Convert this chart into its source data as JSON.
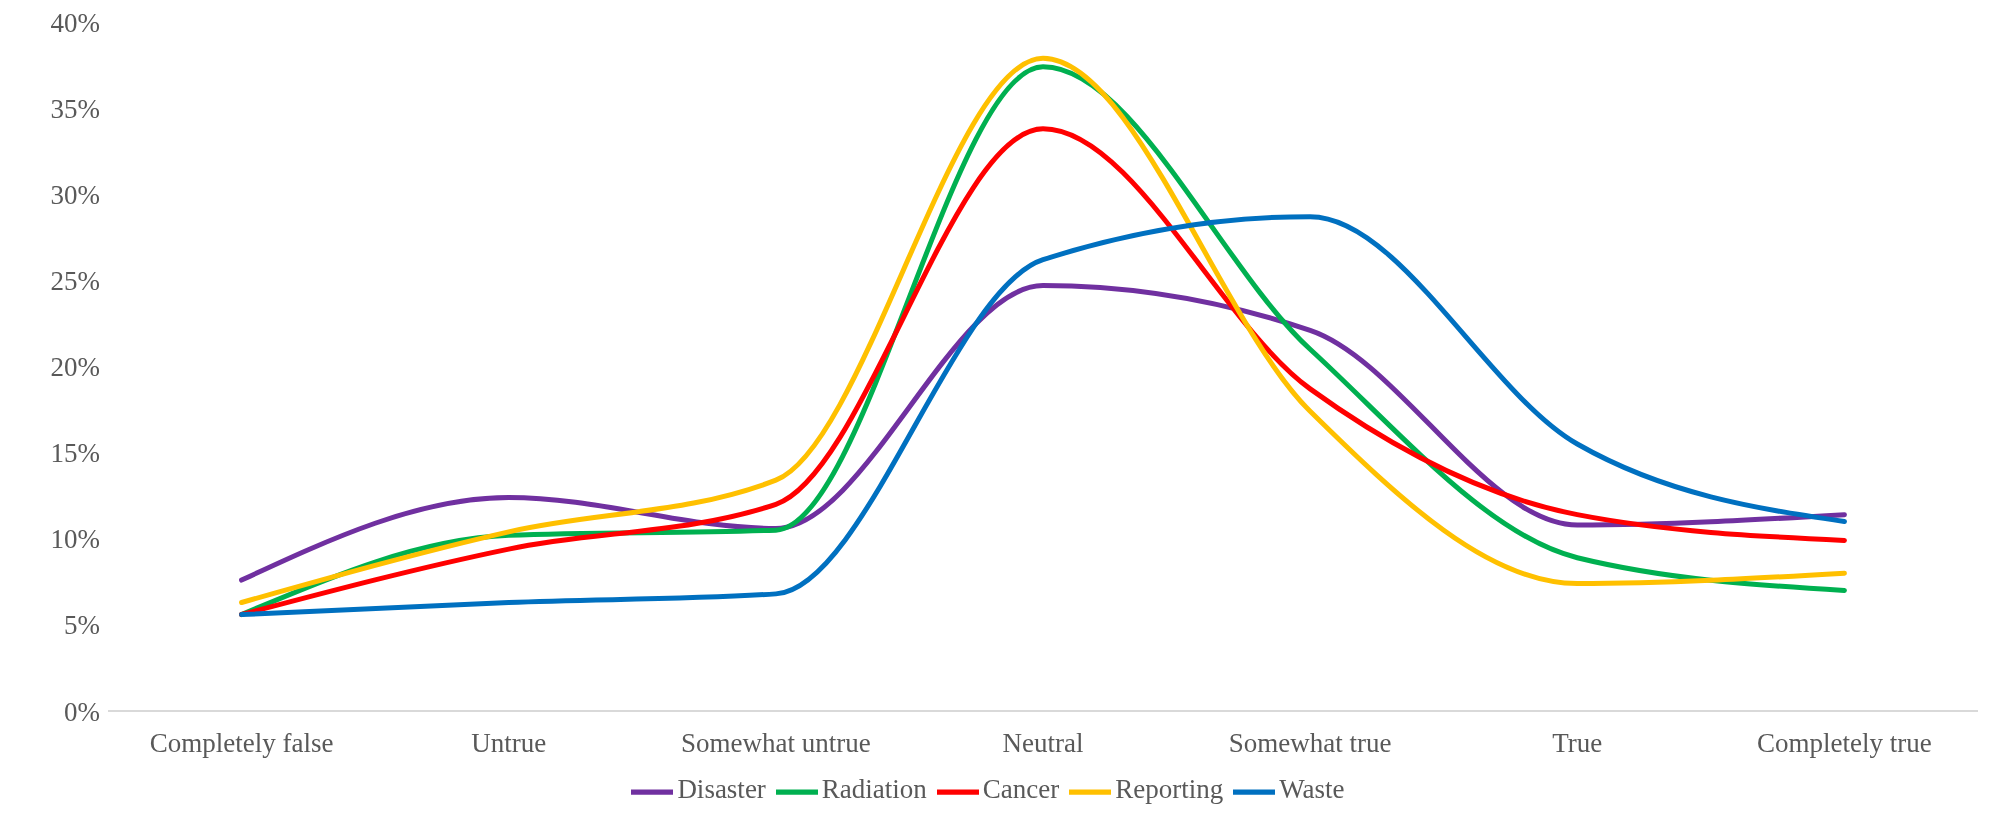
{
  "chart_data": {
    "type": "line",
    "categories": [
      "Completely false",
      "Untrue",
      "Somewhat untrue",
      "Neutral",
      "Somewhat true",
      "True",
      "Completely true"
    ],
    "series": [
      {
        "name": "Disaster",
        "color": "#7030a0",
        "values": [
          7.6,
          12.4,
          10.6,
          24.7,
          22.1,
          10.8,
          11.4
        ]
      },
      {
        "name": "Radiation",
        "color": "#00b050",
        "values": [
          5.6,
          10.2,
          10.5,
          37.4,
          21.0,
          8.9,
          7.0
        ]
      },
      {
        "name": "Cancer",
        "color": "#ff0000",
        "values": [
          5.6,
          9.4,
          12.0,
          33.8,
          18.7,
          11.4,
          9.9
        ]
      },
      {
        "name": "Reporting",
        "color": "#ffc000",
        "values": [
          6.3,
          10.4,
          13.4,
          37.9,
          17.4,
          7.4,
          8.0
        ]
      },
      {
        "name": "Waste",
        "color": "#0070c0",
        "values": [
          5.6,
          6.3,
          6.8,
          26.2,
          28.7,
          15.5,
          11.0
        ]
      }
    ],
    "ylim": [
      0,
      40
    ],
    "yticks": [
      {
        "value": 0,
        "label": "0%"
      },
      {
        "value": 5,
        "label": "5%"
      },
      {
        "value": 10,
        "label": "10%"
      },
      {
        "value": 15,
        "label": "15%"
      },
      {
        "value": 20,
        "label": "20%"
      },
      {
        "value": 25,
        "label": "25%"
      },
      {
        "value": 30,
        "label": "30%"
      },
      {
        "value": 35,
        "label": "35%"
      },
      {
        "value": 40,
        "label": "40%"
      }
    ],
    "grid": false,
    "legend": "bottom",
    "marker": "none",
    "line_style": "solid"
  }
}
